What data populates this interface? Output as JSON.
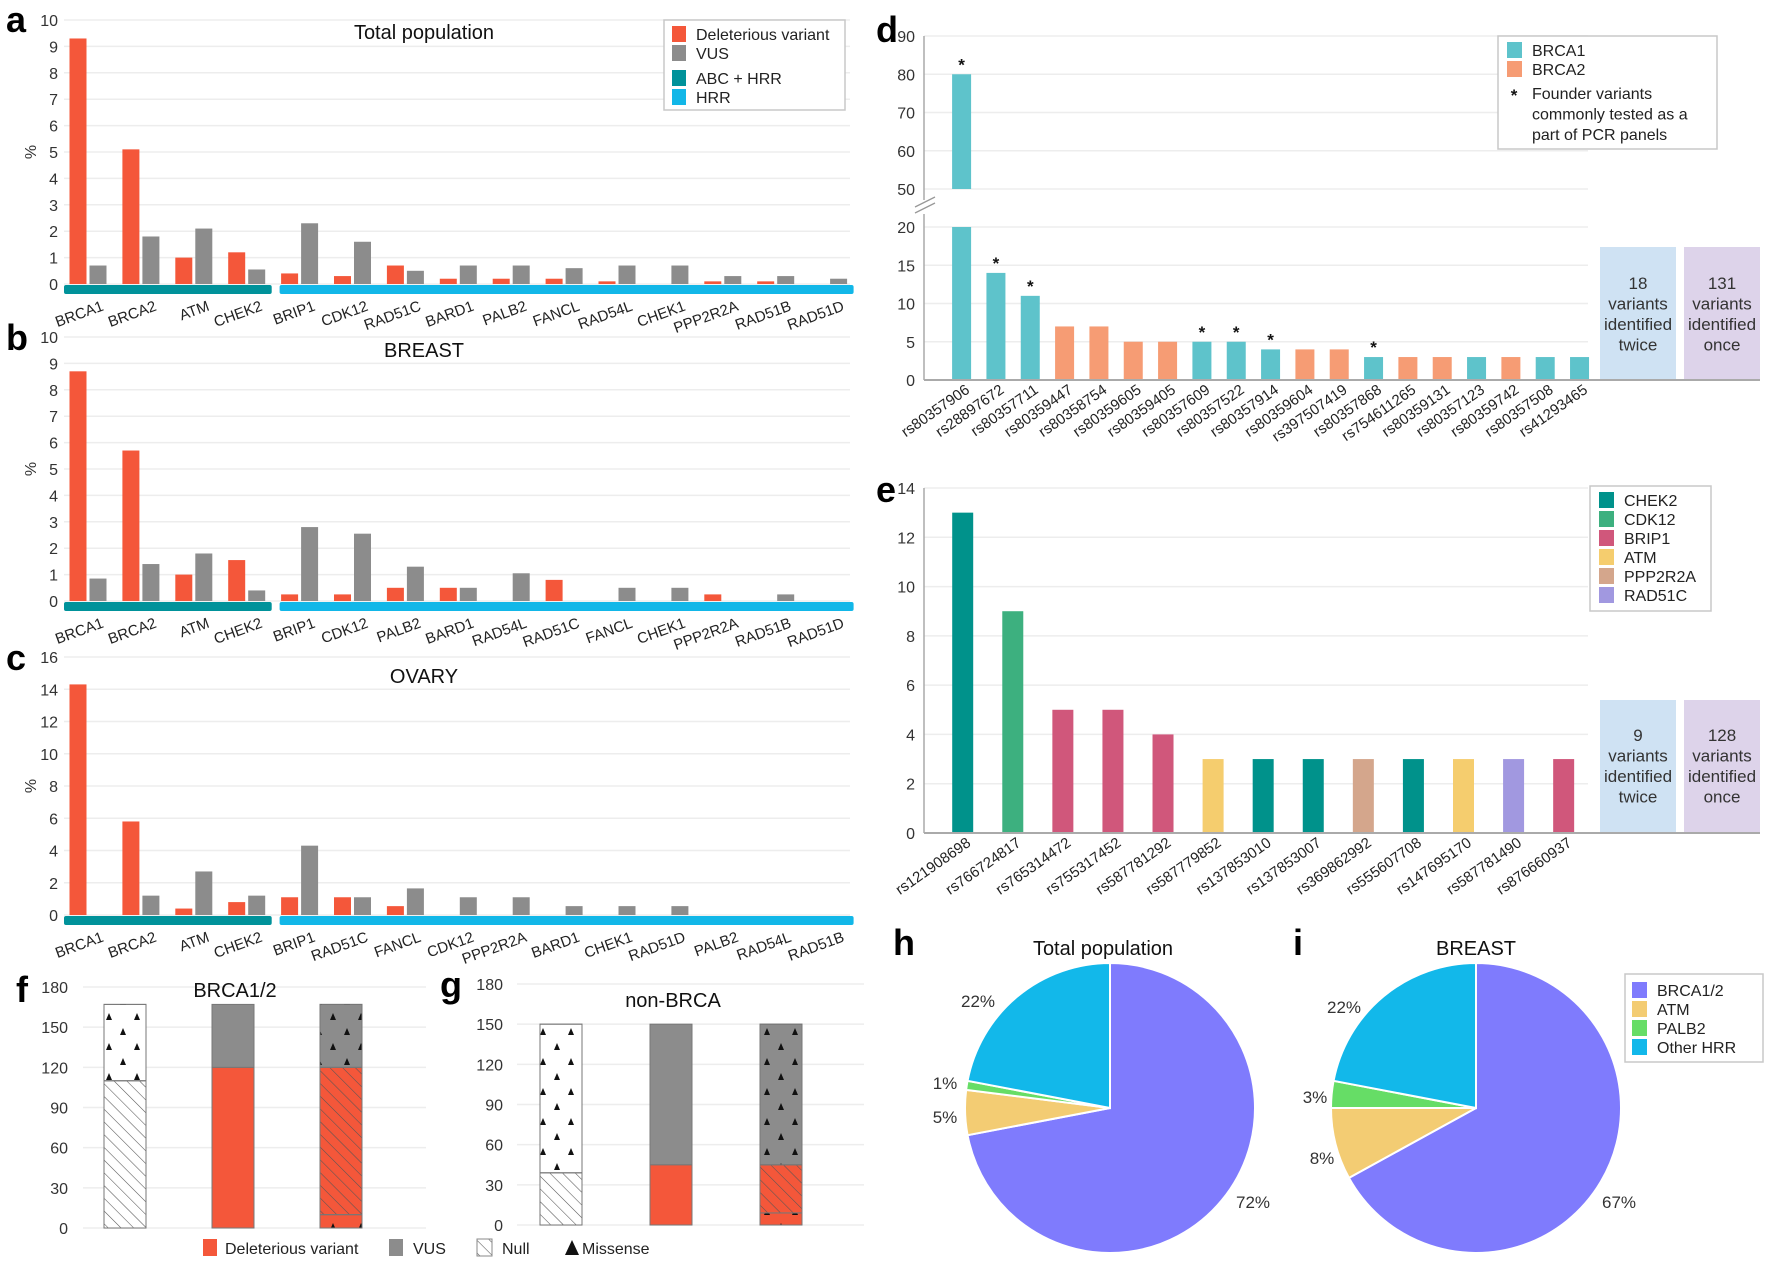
{
  "chart_data": [
    {
      "panel_label": "a",
      "type": "bar",
      "title": "Total population",
      "ylabel": "%",
      "ylim": [
        0,
        10
      ],
      "yticks": [
        0,
        1,
        2,
        3,
        4,
        5,
        6,
        7,
        8,
        9,
        10
      ],
      "grid": true,
      "legend": "top-right",
      "categories": [
        "BRCA1",
        "BRCA2",
        "ATM",
        "CHEK2",
        "BRIP1",
        "CDK12",
        "RAD51C",
        "BARD1",
        "PALB2",
        "FANCL",
        "RAD54L",
        "CHEK1",
        "PPP2R2A",
        "RAD51B",
        "RAD51D"
      ],
      "series": [
        {
          "name": "Deleterious variant",
          "color": "#f4573a",
          "values": [
            9.3,
            5.1,
            1.0,
            1.2,
            0.4,
            0.3,
            0.7,
            0.2,
            0.2,
            0.2,
            0.1,
            0,
            0.1,
            0.1,
            0
          ]
        },
        {
          "name": "VUS",
          "color": "#8c8c8c",
          "values": [
            0.7,
            1.8,
            2.1,
            0.55,
            2.3,
            1.6,
            0.5,
            0.7,
            0.7,
            0.6,
            0.7,
            0.7,
            0.3,
            0.3,
            0.2
          ]
        }
      ],
      "groups": [
        {
          "name": "ABC + HRR",
          "color": "#00929a",
          "count": 4
        },
        {
          "name": "HRR",
          "color": "#12b7e8",
          "count": 11
        }
      ]
    },
    {
      "panel_label": "b",
      "type": "bar",
      "title": "BREAST",
      "ylabel": "%",
      "ylim": [
        0,
        10
      ],
      "yticks": [
        0,
        1,
        2,
        3,
        4,
        5,
        6,
        7,
        8,
        9,
        10
      ],
      "grid": true,
      "categories": [
        "BRCA1",
        "BRCA2",
        "ATM",
        "CHEK2",
        "BRIP1",
        "CDK12",
        "PALB2",
        "BARD1",
        "RAD54L",
        "RAD51C",
        "FANCL",
        "CHEK1",
        "PPP2R2A",
        "RAD51B",
        "RAD51D"
      ],
      "series": [
        {
          "color": "#f4573a",
          "values": [
            8.7,
            5.7,
            1.0,
            1.55,
            0.25,
            0.25,
            0.5,
            0.5,
            0,
            0.8,
            0,
            0,
            0.25,
            0,
            0
          ]
        },
        {
          "color": "#8c8c8c",
          "values": [
            0.85,
            1.4,
            1.8,
            0.4,
            2.8,
            2.55,
            1.3,
            0.5,
            1.05,
            0,
            0.5,
            0.5,
            0,
            0.25,
            0
          ]
        }
      ],
      "groups": [
        {
          "color": "#00929a",
          "count": 4
        },
        {
          "color": "#12b7e8",
          "count": 11
        }
      ]
    },
    {
      "panel_label": "c",
      "type": "bar",
      "title": "OVARY",
      "ylabel": "%",
      "ylim": [
        0,
        16
      ],
      "yticks": [
        0,
        2,
        4,
        6,
        8,
        10,
        12,
        14,
        16
      ],
      "grid": true,
      "categories": [
        "BRCA1",
        "BRCA2",
        "ATM",
        "CHEK2",
        "BRIP1",
        "RAD51C",
        "FANCL",
        "CDK12",
        "PPP2R2A",
        "BARD1",
        "CHEK1",
        "RAD51D",
        "PALB2",
        "RAD54L",
        "RAD51B"
      ],
      "series": [
        {
          "color": "#f4573a",
          "values": [
            14.3,
            5.8,
            0.4,
            0.8,
            1.1,
            1.1,
            0.55,
            0,
            0,
            0,
            0,
            0,
            0,
            0,
            0
          ]
        },
        {
          "color": "#8c8c8c",
          "values": [
            0,
            1.2,
            2.7,
            1.2,
            4.3,
            1.1,
            1.65,
            1.1,
            1.1,
            0.55,
            0.55,
            0.55,
            0,
            0,
            0
          ]
        }
      ],
      "groups": [
        {
          "color": "#00929a",
          "count": 4
        },
        {
          "color": "#12b7e8",
          "count": 11
        }
      ]
    },
    {
      "panel_label": "d",
      "type": "bar",
      "axis_break": true,
      "ylim_lower": [
        0,
        20
      ],
      "ylim_upper": [
        50,
        90
      ],
      "yticks_lower": [
        0,
        5,
        10,
        15,
        20
      ],
      "yticks_upper": [
        50,
        60,
        70,
        80,
        90
      ],
      "grid": true,
      "legend": "top-right",
      "categories": [
        "rs80357906",
        "rs28897672",
        "rs80357711",
        "rs80359447",
        "rs80358754",
        "rs80359605",
        "rs80359405",
        "rs80357609",
        "rs80357522",
        "rs80357914",
        "rs80359604",
        "rs397507419",
        "rs80357868",
        "rs754611265",
        "rs80359131",
        "rs80357123",
        "rs80359742",
        "rs80357508",
        "rs41293465"
      ],
      "values": [
        80,
        14,
        11,
        7,
        7,
        5,
        5,
        5,
        5,
        4,
        4,
        4,
        3,
        3,
        3,
        3,
        3,
        3,
        3
      ],
      "genes": [
        "BRCA1",
        "BRCA1",
        "BRCA1",
        "BRCA2",
        "BRCA2",
        "BRCA2",
        "BRCA2",
        "BRCA1",
        "BRCA1",
        "BRCA1",
        "BRCA2",
        "BRCA2",
        "BRCA1",
        "BRCA2",
        "BRCA2",
        "BRCA1",
        "BRCA2",
        "BRCA1",
        "BRCA1"
      ],
      "founder": [
        true,
        true,
        true,
        false,
        false,
        false,
        false,
        true,
        true,
        true,
        false,
        false,
        true,
        false,
        false,
        false,
        false,
        false,
        false
      ],
      "legend_entries": [
        {
          "label": "BRCA1",
          "color": "#5ec3cb"
        },
        {
          "label": "BRCA2",
          "color": "#f69c74"
        }
      ],
      "founder_note": {
        "symbol": "*",
        "lines": [
          "Founder variants",
          "commonly tested as a",
          "part of PCR panels"
        ]
      },
      "annotations": [
        {
          "lines": [
            "18",
            "variants",
            "identified",
            "twice"
          ],
          "color": "#cfe2f3"
        },
        {
          "lines": [
            "131",
            "variants",
            "identified",
            "once"
          ],
          "color": "#ddd3ea"
        }
      ]
    },
    {
      "panel_label": "e",
      "type": "bar",
      "ylim": [
        0,
        14
      ],
      "yticks": [
        0,
        2,
        4,
        6,
        8,
        10,
        12,
        14
      ],
      "grid": true,
      "legend": "top-right",
      "categories": [
        "rs121908698",
        "rs766724817",
        "rs765314472",
        "rs755317452",
        "rs587781292",
        "rs587779852",
        "rs137853010",
        "rs137853007",
        "rs369862992",
        "rs555607708",
        "rs147695170",
        "rs587781490",
        "rs876660937"
      ],
      "values": [
        13,
        9,
        5,
        5,
        4,
        3,
        3,
        3,
        3,
        3,
        3,
        3,
        3
      ],
      "genes": [
        "CHEK2",
        "CDK12",
        "BRIP1",
        "BRIP1",
        "BRIP1",
        "ATM",
        "CHEK2",
        "CHEK2",
        "PPP2R2A",
        "CHEK2",
        "ATM",
        "RAD51C",
        "BRIP1"
      ],
      "legend_entries": [
        {
          "label": "CHEK2",
          "color": "#00928b"
        },
        {
          "label": "CDK12",
          "color": "#3db07f"
        },
        {
          "label": "BRIP1",
          "color": "#d0577b"
        },
        {
          "label": "ATM",
          "color": "#f5cd6e"
        },
        {
          "label": "PPP2R2A",
          "color": "#d4a68c"
        },
        {
          "label": "RAD51C",
          "color": "#a198e0"
        }
      ],
      "annotations": [
        {
          "lines": [
            "9",
            "variants",
            "identified",
            "twice"
          ],
          "color": "#cfe2f3"
        },
        {
          "lines": [
            "128",
            "variants",
            "identified",
            "once"
          ],
          "color": "#ddd3ea"
        }
      ]
    },
    {
      "panel_label": "f",
      "type": "bar",
      "stacked": true,
      "title": "BRCA1/2",
      "ylim": [
        0,
        180
      ],
      "yticks": [
        0,
        30,
        60,
        90,
        120,
        150,
        180
      ],
      "grid": true,
      "columns": [
        [
          {
            "value": 110,
            "fill": "none",
            "mark": "null"
          },
          {
            "value": 57,
            "fill": "none",
            "mark": "missense"
          }
        ],
        [
          {
            "value": 120,
            "fill": "deleterious"
          },
          {
            "value": 47,
            "fill": "vus"
          }
        ],
        [
          {
            "value": 10,
            "fill": "deleterious",
            "mark": "missense"
          },
          {
            "value": 110,
            "fill": "deleterious",
            "mark": "null"
          },
          {
            "value": 47,
            "fill": "vus",
            "mark": "missense"
          }
        ]
      ],
      "legend": "bottom",
      "legend_entries": [
        {
          "label": "Deleterious variant",
          "color": "#f4573a"
        },
        {
          "label": "VUS",
          "color": "#8c8c8c"
        },
        {
          "label": "Null",
          "pattern": "hatch"
        },
        {
          "label": "Missense",
          "pattern": "triangle"
        }
      ]
    },
    {
      "panel_label": "g",
      "type": "bar",
      "stacked": true,
      "title": "non-BRCA",
      "ylim": [
        0,
        180
      ],
      "yticks": [
        0,
        30,
        60,
        90,
        120,
        150,
        180
      ],
      "grid": true,
      "columns": [
        [
          {
            "value": 39,
            "fill": "none",
            "mark": "null"
          },
          {
            "value": 111,
            "fill": "none",
            "mark": "missense"
          }
        ],
        [
          {
            "value": 45,
            "fill": "deleterious"
          },
          {
            "value": 105,
            "fill": "vus"
          }
        ],
        [
          {
            "value": 9,
            "fill": "deleterious",
            "mark": "missense"
          },
          {
            "value": 36,
            "fill": "deleterious",
            "mark": "null"
          },
          {
            "value": 105,
            "fill": "vus",
            "mark": "missense"
          }
        ]
      ]
    },
    {
      "panel_label": "h",
      "type": "pie",
      "title": "Total population",
      "slices": [
        {
          "label": "BRCA1/2",
          "value": 72,
          "text": "72%",
          "color": "#7f7bfd"
        },
        {
          "label": "ATM",
          "value": 5,
          "text": "5%",
          "color": "#f3cc73"
        },
        {
          "label": "PALB2",
          "value": 1,
          "text": "1%",
          "color": "#66dd66"
        },
        {
          "label": "Other HRR",
          "value": 22,
          "text": "22%",
          "color": "#12b8ea"
        }
      ]
    },
    {
      "panel_label": "i",
      "type": "pie",
      "title": "BREAST",
      "legend": "right",
      "slices": [
        {
          "label": "BRCA1/2",
          "value": 67,
          "text": "67%",
          "color": "#7f7bfd"
        },
        {
          "label": "ATM",
          "value": 8,
          "text": "8%",
          "color": "#f3cc73"
        },
        {
          "label": "PALB2",
          "value": 3,
          "text": "3%",
          "color": "#66dd66"
        },
        {
          "label": "Other HRR",
          "value": 22,
          "text": "22%",
          "color": "#12b8ea"
        }
      ]
    }
  ]
}
